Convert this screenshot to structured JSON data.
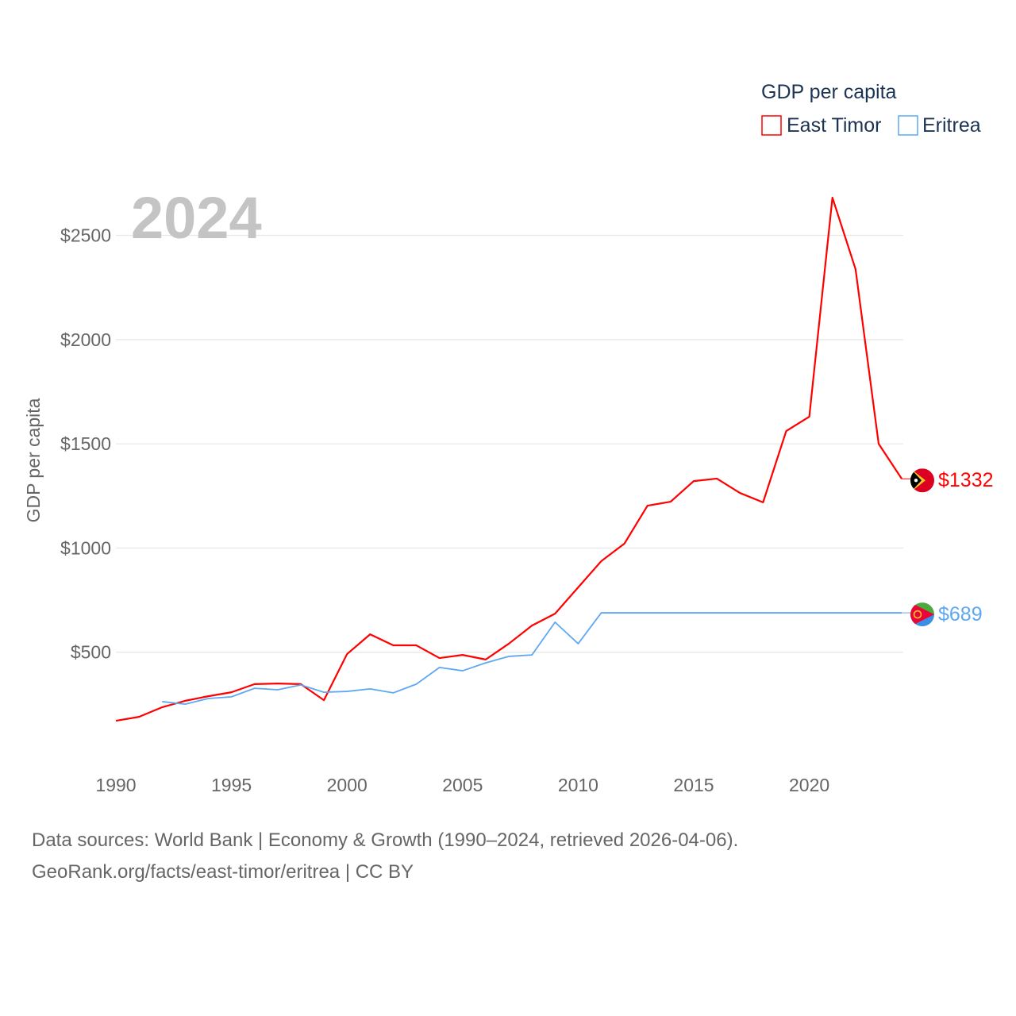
{
  "chart_data": {
    "type": "line",
    "title": "GDP per capita",
    "ylabel": "GDP per capita",
    "xlabel": "",
    "year_label": "2024",
    "xlim": [
      1990,
      2024
    ],
    "ylim": [
      0,
      2700
    ],
    "x_ticks": [
      1990,
      1995,
      2000,
      2005,
      2010,
      2015,
      2020
    ],
    "y_ticks": [
      500,
      1000,
      1500,
      2000,
      2500
    ],
    "y_tick_labels": [
      "$500",
      "$1000",
      "$1500",
      "$2000",
      "$2500"
    ],
    "grid": true,
    "legend_position": "top-right",
    "series": [
      {
        "name": "East Timor",
        "color": "#ff0000",
        "end_label": "$1332",
        "flag": "east-timor-flag",
        "x": [
          1990,
          1991,
          1992,
          1993,
          1994,
          1995,
          1996,
          1997,
          1998,
          1999,
          2000,
          2001,
          2002,
          2003,
          2004,
          2005,
          2006,
          2007,
          2008,
          2009,
          2010,
          2011,
          2012,
          2013,
          2014,
          2015,
          2016,
          2017,
          2018,
          2019,
          2020,
          2021,
          2022,
          2023,
          2024
        ],
        "values": [
          171,
          190,
          236,
          267,
          289,
          308,
          347,
          350,
          347,
          270,
          491,
          586,
          533,
          533,
          472,
          487,
          465,
          541,
          628,
          685,
          811,
          937,
          1021,
          1203,
          1222,
          1321,
          1333,
          1264,
          1219,
          1561,
          1630,
          2681,
          2338,
          1500,
          1332
        ]
      },
      {
        "name": "Eritrea",
        "color": "#5ea8f2",
        "end_label": "$689",
        "flag": "eritrea-flag",
        "x": [
          1992,
          1993,
          1994,
          1995,
          1996,
          1997,
          1998,
          1999,
          2000,
          2001,
          2002,
          2003,
          2004,
          2005,
          2006,
          2007,
          2008,
          2009,
          2010,
          2011,
          2012,
          2013,
          2014,
          2015,
          2016,
          2017,
          2018,
          2019,
          2020,
          2021,
          2022,
          2023,
          2024
        ],
        "values": [
          263,
          251,
          278,
          286,
          327,
          320,
          343,
          308,
          312,
          324,
          305,
          347,
          427,
          411,
          449,
          480,
          487,
          644,
          541,
          689,
          689,
          689,
          689,
          689,
          689,
          689,
          689,
          689,
          689,
          689,
          689,
          689,
          689
        ]
      }
    ]
  },
  "footer": {
    "line1": "Data sources: World Bank | Economy & Growth (1990–2024, retrieved 2026-04-06).",
    "line2": "GeoRank.org/facts/east-timor/eritrea | CC BY"
  }
}
